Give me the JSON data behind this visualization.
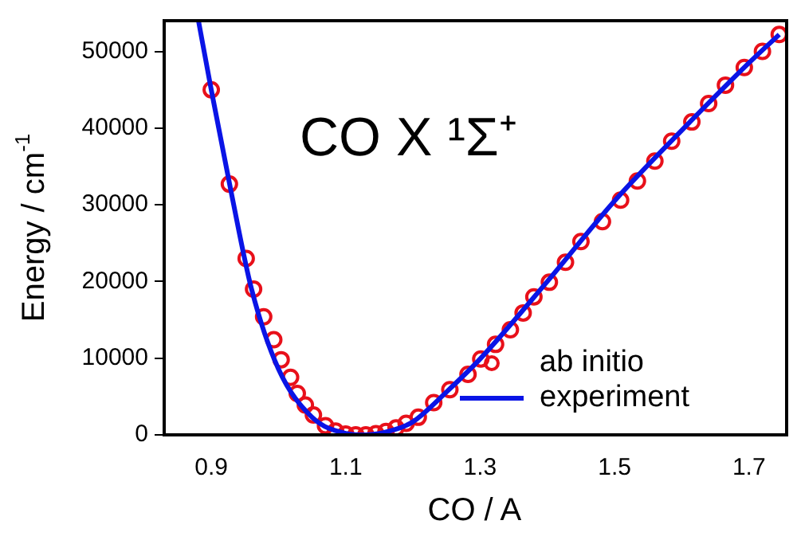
{
  "chart_data": {
    "type": "scatter",
    "xlabel": "CO / A",
    "ylabel": "Energy / cm$^{-1}$",
    "annotations": [
      "CO X ¹Σ⁺"
    ],
    "xlim": [
      0.83,
      1.756
    ],
    "xticks": [
      0.9,
      1.1,
      1.3,
      1.5,
      1.7
    ],
    "ylim": [
      0,
      54000
    ],
    "yticks": [
      0,
      10000,
      20000,
      30000,
      40000,
      50000
    ],
    "grid": false,
    "legend": "bottom right",
    "series": [
      {
        "name": "ab initio",
        "type": "scatter",
        "marker": "circle",
        "color": "#e8101a",
        "x": [
          0.9,
          0.927,
          0.952,
          0.963,
          0.978,
          0.993,
          1.004,
          1.018,
          1.028,
          1.04,
          1.052,
          1.07,
          1.085,
          1.1,
          1.115,
          1.13,
          1.145,
          1.16,
          1.175,
          1.19,
          1.208,
          1.231,
          1.255,
          1.282,
          1.301,
          1.323,
          1.345,
          1.364,
          1.38,
          1.403,
          1.427,
          1.45,
          1.482,
          1.509,
          1.534,
          1.56,
          1.585,
          1.615,
          1.64,
          1.665,
          1.693,
          1.72,
          1.745
        ],
        "values": [
          45000,
          32700,
          23000,
          19000,
          15400,
          12400,
          9800,
          7500,
          5400,
          3900,
          2600,
          1200,
          500,
          100,
          0,
          0,
          150,
          450,
          900,
          1500,
          2300,
          4200,
          5900,
          7900,
          9900,
          11800,
          13700,
          15900,
          18000,
          19900,
          22500,
          25200,
          27800,
          30600,
          33100,
          35700,
          38300,
          40800,
          43200,
          45600,
          47900,
          50000,
          52200
        ]
      },
      {
        "name": "experiment",
        "type": "line",
        "marker": "none",
        "line_style": "solid",
        "color": "#0a14e6",
        "x": [
          0.881,
          0.9,
          0.93,
          0.96,
          1.0,
          1.05,
          1.1,
          1.13,
          1.17,
          1.2,
          1.25,
          1.3,
          1.4,
          1.5,
          1.6,
          1.7,
          1.745
        ],
        "values": [
          54000,
          45000,
          31500,
          19000,
          8600,
          2300,
          200,
          0,
          600,
          1700,
          5600,
          9900,
          20000,
          30500,
          39700,
          48500,
          52200
        ]
      }
    ]
  }
}
